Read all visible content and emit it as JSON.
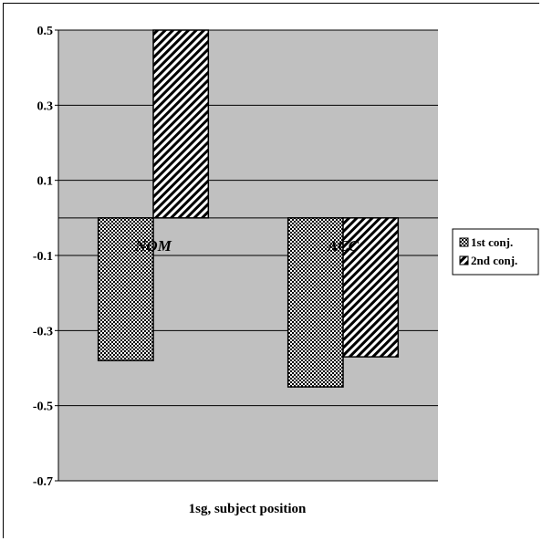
{
  "chart_data": {
    "type": "bar",
    "title": "",
    "xlabel": "1sg, subject position",
    "ylabel": "",
    "categories": [
      "NOM",
      "ACC"
    ],
    "series": [
      {
        "name": "1st conj.",
        "values": [
          -0.38,
          -0.45
        ]
      },
      {
        "name": "2nd conj.",
        "values": [
          0.5,
          -0.37
        ]
      }
    ],
    "ylim": [
      -0.7,
      0.5
    ],
    "yticks": [
      "0.5",
      "0.3",
      "0.1",
      "-0.1",
      "-0.3",
      "-0.5",
      "-0.7"
    ],
    "grid": true,
    "legend_position": "right",
    "colors": {
      "plot_area": "#c0c0c0",
      "gridline": "#000000",
      "bar_fill": "#ffffff",
      "bar_pattern": "#000000"
    }
  }
}
